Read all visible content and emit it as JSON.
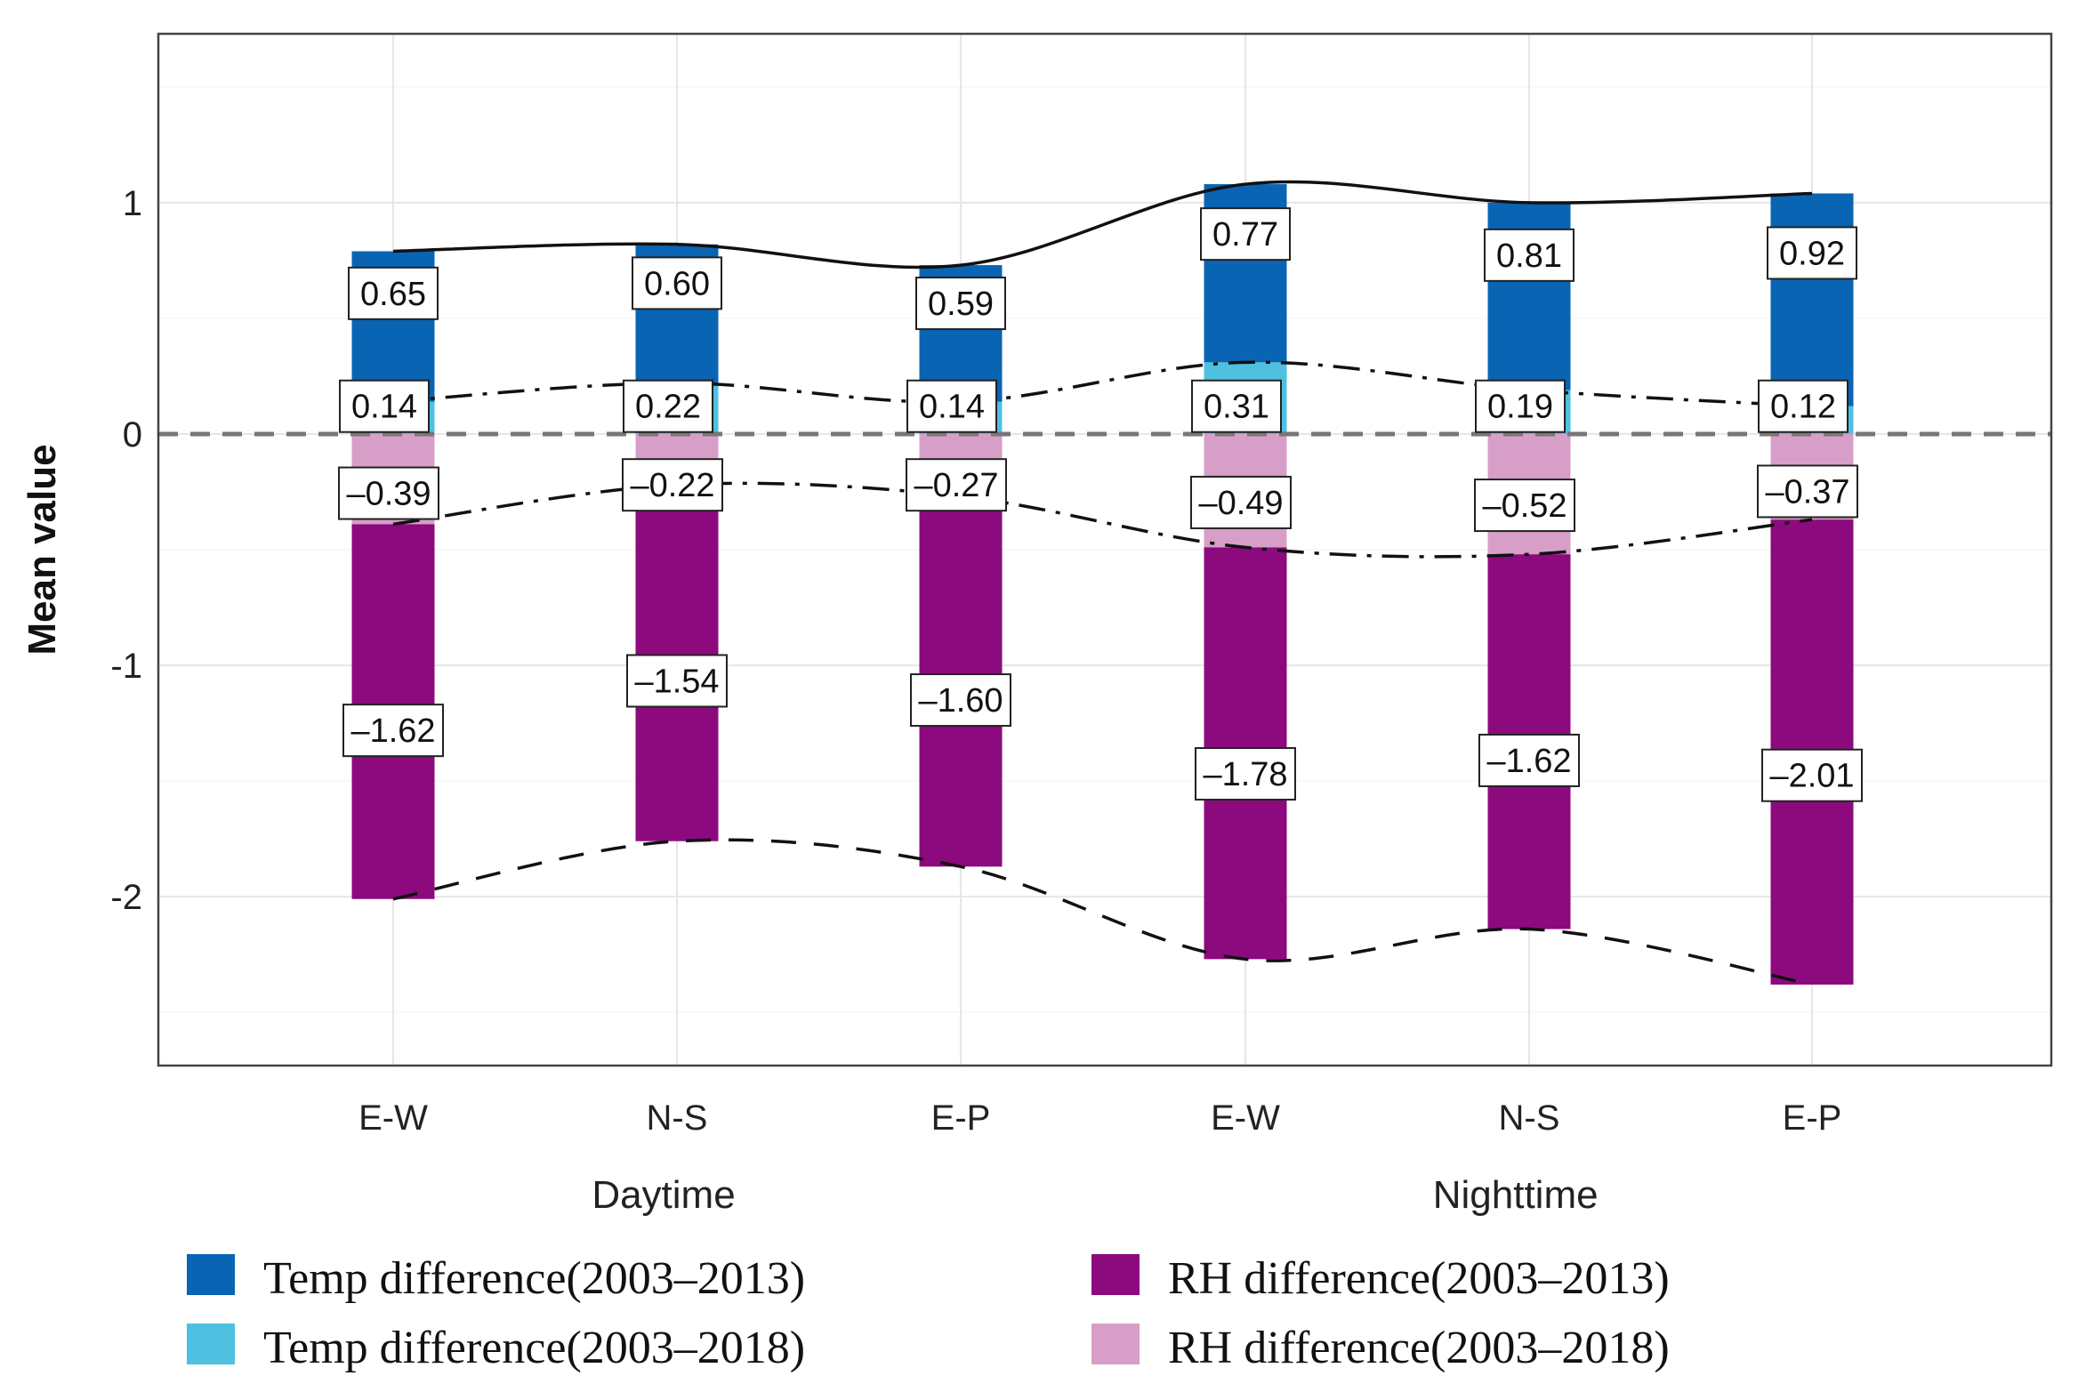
{
  "chart_data": {
    "type": "bar",
    "stacked": true,
    "ylabel": "Mean value",
    "xlabel": "",
    "ylim": [
      -2.73,
      1.73
    ],
    "yticks": [
      1,
      0,
      -1,
      -2
    ],
    "grid": true,
    "categories": [
      "E-W",
      "N-S",
      "E-P",
      "E-W",
      "N-S",
      "E-P"
    ],
    "groups": [
      {
        "label": "Daytime",
        "categories": [
          0,
          1,
          2
        ]
      },
      {
        "label": "Nighttime",
        "categories": [
          3,
          4,
          5
        ]
      }
    ],
    "series": [
      {
        "name": "Temp difference(2003–2013)",
        "color": "#0a64b4",
        "values": [
          0.65,
          0.6,
          0.59,
          0.77,
          0.81,
          0.92
        ]
      },
      {
        "name": "Temp difference(2003–2018)",
        "color": "#4ec0e0",
        "values": [
          0.14,
          0.22,
          0.14,
          0.31,
          0.19,
          0.12
        ]
      },
      {
        "name": "RH difference(2003–2013)",
        "color": "#8c0a7e",
        "values": [
          -1.62,
          -1.54,
          -1.6,
          -1.78,
          -1.62,
          -2.01
        ]
      },
      {
        "name": "RH difference(2003–2018)",
        "color": "#d79ec8",
        "values": [
          -0.39,
          -0.22,
          -0.27,
          -0.49,
          -0.52,
          -0.37
        ]
      }
    ],
    "reference_line": {
      "y": 0,
      "style": "dashed",
      "color": "#777777"
    },
    "legend_placement": "bottom"
  }
}
